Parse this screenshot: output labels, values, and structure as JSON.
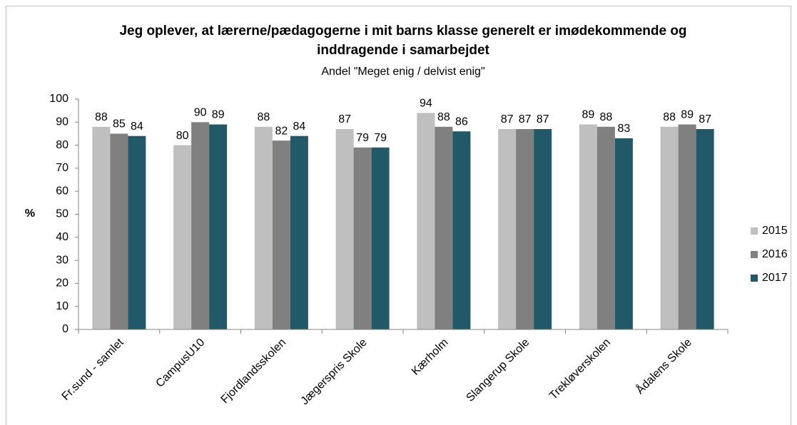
{
  "chart_data": {
    "type": "bar",
    "title": "Jeg oplever, at lærerne/pædagogerne i mit barns klasse generelt er imødekommende og inddragende i samarbejdet",
    "subtitle": "Andel \"Meget enig / delvist enig\"",
    "y_label": "%",
    "categories": [
      "Fr.sund - samlet",
      "CampusU10",
      "Fjordlandsskolen",
      "Jægerspris Skole",
      "Kærholm",
      "Slangerup Skole",
      "Trekløverskolen",
      "Ådalens Skole"
    ],
    "series": [
      {
        "name": "2015",
        "color": "#bfbfbf",
        "values": [
          88,
          80,
          88,
          87,
          94,
          87,
          89,
          88
        ]
      },
      {
        "name": "2016",
        "color": "#808080",
        "values": [
          85,
          90,
          82,
          79,
          88,
          87,
          88,
          89
        ]
      },
      {
        "name": "2017",
        "color": "#215968",
        "values": [
          84,
          89,
          84,
          79,
          86,
          87,
          83,
          87
        ]
      }
    ],
    "ylim": [
      0,
      100
    ],
    "yticks": [
      0,
      10,
      20,
      30,
      40,
      50,
      60,
      70,
      80,
      90,
      100
    ],
    "grid": false,
    "legend": "right"
  }
}
